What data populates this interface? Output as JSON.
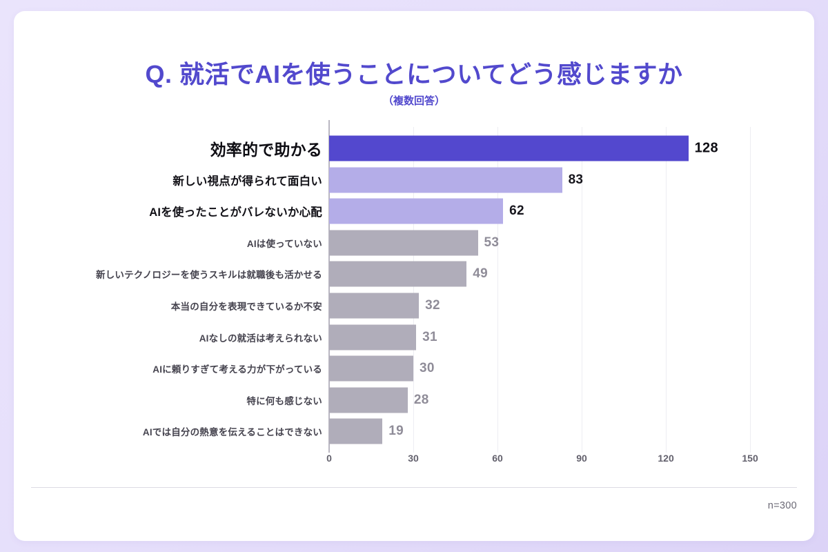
{
  "title": "Q. 就活でAIを使うことについてどう感じますか",
  "subtitle": "（複数回答）",
  "footer": {
    "note": "n=300"
  },
  "colors": {
    "accent": "#5249cd",
    "bar_primary": "#5348ce",
    "bar_secondary": "#b4ade8",
    "bar_muted": "#b0adba",
    "grid": "#ededf2",
    "axis": "#b9b6c1"
  },
  "chart_data": {
    "type": "bar",
    "orientation": "horizontal",
    "title": "Q. 就活でAIを使うことについてどう感じますか",
    "subtitle": "（複数回答）",
    "note": "n=300",
    "categories": [
      "効率的で助かる",
      "新しい視点が得られて面白い",
      "AIを使ったことがバレないか心配",
      "AIは使っていない",
      "新しいテクノロジーを使うスキルは就職後も活かせる",
      "本当の自分を表現できているか不安",
      "AIなしの就活は考えられない",
      "AIに頼りすぎて考える力が下がっている",
      "特に何も感じない",
      "AIでは自分の熱意を伝えることはできない"
    ],
    "values": [
      128,
      83,
      62,
      53,
      49,
      32,
      31,
      30,
      28,
      19
    ],
    "emphasis": [
      "primary",
      "secondary",
      "secondary",
      "muted",
      "muted",
      "muted",
      "muted",
      "muted",
      "muted",
      "muted"
    ],
    "bar_colors": [
      "#5348ce",
      "#b4ade8",
      "#b4ade8",
      "#b0adba",
      "#b0adba",
      "#b0adba",
      "#b0adba",
      "#b0adba",
      "#b0adba",
      "#b0adba"
    ],
    "xticks": [
      0,
      30,
      60,
      90,
      120,
      150
    ],
    "xlim": [
      0,
      150
    ],
    "grid": true,
    "legend": false
  }
}
